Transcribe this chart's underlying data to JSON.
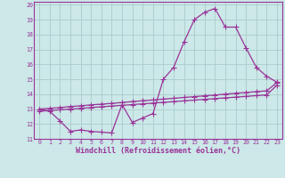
{
  "xlabel": "Windchill (Refroidissement éolien,°C)",
  "bg_color": "#cce8e8",
  "grid_color": "#aacccc",
  "line_color": "#993399",
  "xlim": [
    -0.5,
    23.5
  ],
  "ylim": [
    11,
    20.2
  ],
  "xticks": [
    0,
    1,
    2,
    3,
    4,
    5,
    6,
    7,
    8,
    9,
    10,
    11,
    12,
    13,
    14,
    15,
    16,
    17,
    18,
    19,
    20,
    21,
    22,
    23
  ],
  "yticks": [
    11,
    12,
    13,
    14,
    15,
    16,
    17,
    18,
    19,
    20
  ],
  "curve1_x": [
    0,
    1,
    2,
    3,
    4,
    5,
    6,
    7,
    8,
    9,
    10,
    11,
    12,
    13,
    14,
    15,
    16,
    17,
    18,
    19,
    20,
    21,
    22,
    23
  ],
  "curve1_y": [
    13.0,
    12.85,
    12.2,
    11.5,
    11.6,
    11.5,
    11.45,
    11.4,
    13.3,
    12.1,
    12.4,
    12.7,
    15.0,
    15.8,
    17.5,
    19.0,
    19.5,
    19.75,
    18.5,
    18.5,
    17.1,
    15.8,
    15.2,
    14.8
  ],
  "curve2_x": [
    0,
    1,
    2,
    3,
    4,
    5,
    6,
    7,
    8,
    9,
    10,
    11,
    12,
    13,
    14,
    15,
    16,
    17,
    18,
    19,
    20,
    21,
    22,
    23
  ],
  "curve2_y": [
    13.0,
    13.05,
    13.1,
    13.17,
    13.22,
    13.28,
    13.33,
    13.38,
    13.44,
    13.5,
    13.56,
    13.61,
    13.67,
    13.72,
    13.78,
    13.83,
    13.89,
    13.94,
    14.0,
    14.06,
    14.11,
    14.17,
    14.22,
    14.78
  ],
  "curve3_x": [
    0,
    1,
    2,
    3,
    4,
    5,
    6,
    7,
    8,
    9,
    10,
    11,
    12,
    13,
    14,
    15,
    16,
    17,
    18,
    19,
    20,
    21,
    22,
    23
  ],
  "curve3_y": [
    12.85,
    12.9,
    12.95,
    13.0,
    13.05,
    13.1,
    13.15,
    13.2,
    13.25,
    13.3,
    13.35,
    13.4,
    13.45,
    13.5,
    13.55,
    13.6,
    13.65,
    13.7,
    13.75,
    13.8,
    13.85,
    13.9,
    13.95,
    14.6
  ],
  "marker_size": 2.0,
  "line_width": 0.9,
  "tick_fontsize": 4.8,
  "label_fontsize": 6.0
}
